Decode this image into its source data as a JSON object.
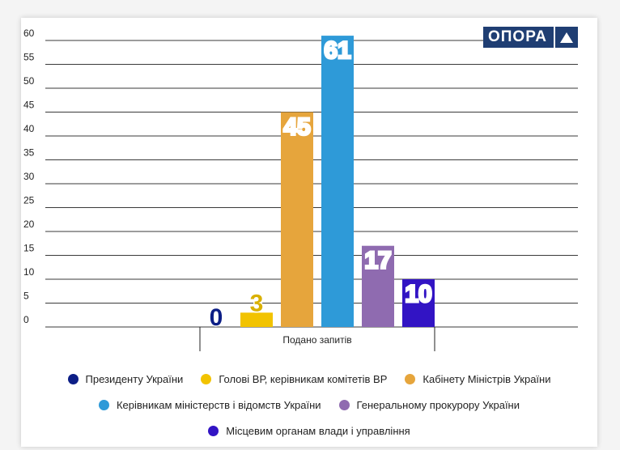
{
  "logo": {
    "text": "ОПОРА",
    "icon": "triangle-up-icon"
  },
  "chart_data": {
    "type": "bar",
    "title": "",
    "xlabel": "",
    "ylabel": "",
    "ylim": [
      0,
      60
    ],
    "yticks": [
      0,
      5,
      10,
      15,
      20,
      25,
      30,
      35,
      40,
      45,
      50,
      55,
      60
    ],
    "grid": true,
    "categories": [
      "Подано запитів"
    ],
    "legend_position": "bottom",
    "series": [
      {
        "name": "Президенту України",
        "values": [
          0
        ],
        "color": "#0c1e86"
      },
      {
        "name": "Голові ВР, керівникам комітетів ВР",
        "values": [
          3
        ],
        "color": "#f2c300"
      },
      {
        "name": "Кабінету Міністрів України",
        "values": [
          45
        ],
        "color": "#e6a53c"
      },
      {
        "name": "Керівникам міністерств і відомств України",
        "values": [
          61
        ],
        "color": "#2e9ad8"
      },
      {
        "name": "Генеральному прокурору України",
        "values": [
          17
        ],
        "color": "#8f6bb0"
      },
      {
        "name": "Місцевим органам влади і управління",
        "values": [
          10
        ],
        "color": "#3214c4"
      }
    ],
    "data_labels": [
      "0",
      "3",
      "45",
      "61",
      "17",
      "10"
    ],
    "label_colors": [
      "#0c1e86",
      "#d9b000",
      "#ffffff",
      "#ffffff",
      "#ffffff",
      "#ffffff"
    ]
  }
}
